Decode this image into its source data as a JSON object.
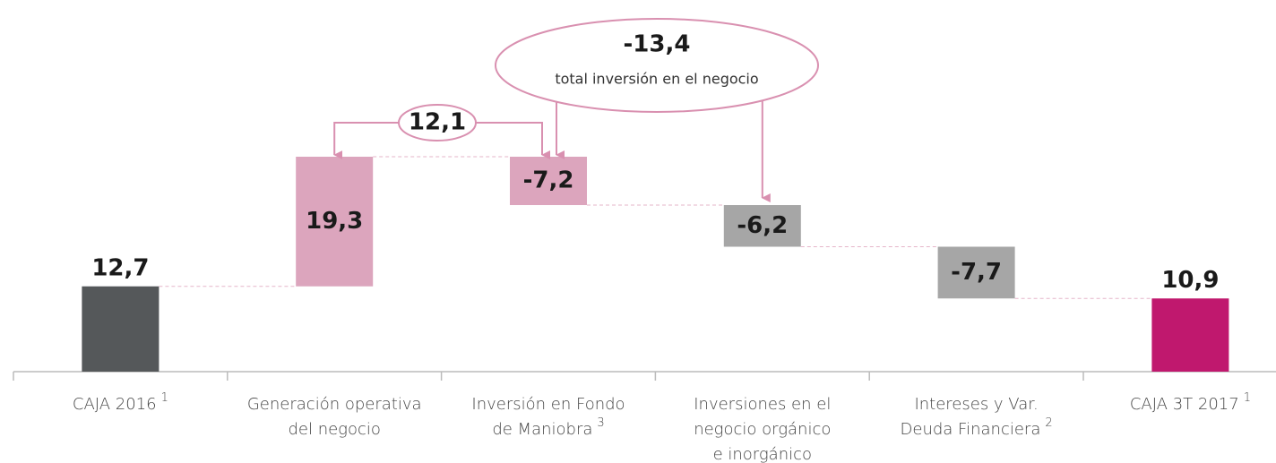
{
  "chart_data": {
    "type": "waterfall",
    "categories": [
      [
        "CAJA 2016"
      ],
      [
        "Generación operativa",
        "del negocio"
      ],
      [
        "Inversión en Fondo",
        "de Maniobra"
      ],
      [
        "Inversiones en el",
        "negocio orgánico",
        "e inorgánico"
      ],
      [
        "Intereses y Var.",
        "Deuda Financiera"
      ],
      [
        "CAJA 3T 2017"
      ]
    ],
    "footnotes": [
      "1",
      null,
      "3",
      null,
      "2",
      "1"
    ],
    "values": [
      12.7,
      19.3,
      -7.2,
      -6.2,
      -7.7,
      10.9
    ],
    "value_labels": [
      "12,7",
      "19,3",
      "-7,2",
      "-6,2",
      "-7,7",
      "10,9"
    ],
    "totals": [
      true,
      false,
      false,
      false,
      false,
      true
    ],
    "colors": [
      "#55585a",
      "#dca5bd",
      "#dca5bd",
      "#a6a6a6",
      "#a6a6a6",
      "#c0186e"
    ],
    "annotations": [
      {
        "value": 12.1,
        "label": "12,1"
      },
      {
        "value": -13.4,
        "label": "-13,4",
        "text": "total inversión en el negocio"
      }
    ]
  }
}
